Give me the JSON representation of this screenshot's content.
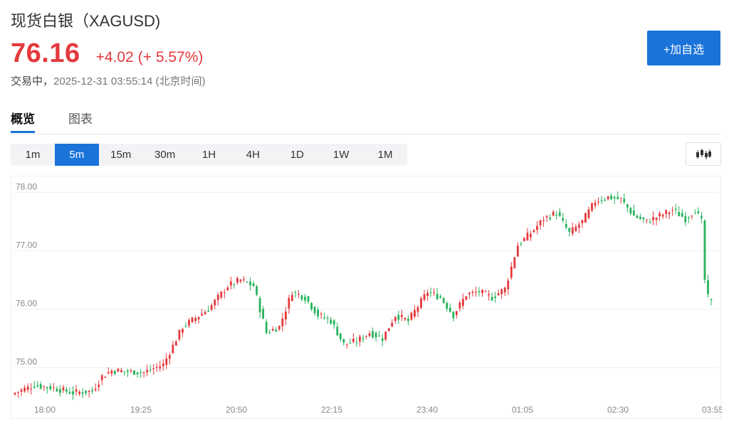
{
  "header": {
    "title": "现货白银（XAGUSD)",
    "price": "76.16",
    "change": "+4.02",
    "change_pct": "(+ 5.57%)",
    "status": "交易中，",
    "timestamp": "2025-12-31 03:55:14 (北京时间)",
    "watch_button": "+加自选"
  },
  "tabs": [
    {
      "label": "概览",
      "active": true
    },
    {
      "label": "图表",
      "active": false
    }
  ],
  "intervals": [
    {
      "label": "1m",
      "active": false
    },
    {
      "label": "5m",
      "active": true
    },
    {
      "label": "15m",
      "active": false
    },
    {
      "label": "30m",
      "active": false
    },
    {
      "label": "1H",
      "active": false
    },
    {
      "label": "4H",
      "active": false
    },
    {
      "label": "1D",
      "active": false
    },
    {
      "label": "1W",
      "active": false
    },
    {
      "label": "1M",
      "active": false
    }
  ],
  "icons": {
    "chart_type": "candlestick-icon"
  },
  "colors": {
    "up": "#e4393c",
    "down": "#26b35a",
    "accent": "#1a73d9"
  },
  "chart_data": {
    "type": "candlestick",
    "interval": "5m",
    "x_ticks": [
      "18:00",
      "19:25",
      "20:50",
      "22:15",
      "23:40",
      "01:05",
      "02:30",
      "03:55"
    ],
    "y_ticks": [
      "75.00",
      "76.00",
      "77.00",
      "78.00"
    ],
    "ylim": [
      74.4,
      78.2
    ],
    "grid": true,
    "anchors": [
      [
        0,
        74.57
      ],
      [
        6,
        74.7
      ],
      [
        12,
        74.65
      ],
      [
        18,
        74.57
      ],
      [
        24,
        74.6
      ],
      [
        27,
        74.85
      ],
      [
        30,
        74.95
      ],
      [
        40,
        74.92
      ],
      [
        46,
        75.05
      ],
      [
        52,
        75.7
      ],
      [
        56,
        75.85
      ],
      [
        60,
        76.0
      ],
      [
        66,
        76.4
      ],
      [
        70,
        76.5
      ],
      [
        74,
        76.4
      ],
      [
        78,
        75.6
      ],
      [
        82,
        75.7
      ],
      [
        86,
        76.3
      ],
      [
        90,
        76.2
      ],
      [
        94,
        75.9
      ],
      [
        98,
        75.8
      ],
      [
        102,
        75.4
      ],
      [
        106,
        75.45
      ],
      [
        110,
        75.6
      ],
      [
        114,
        75.5
      ],
      [
        118,
        75.9
      ],
      [
        122,
        75.8
      ],
      [
        128,
        76.3
      ],
      [
        132,
        76.2
      ],
      [
        136,
        75.9
      ],
      [
        140,
        76.25
      ],
      [
        144,
        76.3
      ],
      [
        148,
        76.2
      ],
      [
        152,
        76.35
      ],
      [
        156,
        77.1
      ],
      [
        160,
        77.3
      ],
      [
        164,
        77.55
      ],
      [
        168,
        77.65
      ],
      [
        172,
        77.3
      ],
      [
        176,
        77.5
      ],
      [
        180,
        77.85
      ],
      [
        184,
        77.92
      ],
      [
        188,
        77.88
      ],
      [
        192,
        77.6
      ],
      [
        196,
        77.5
      ],
      [
        200,
        77.6
      ],
      [
        204,
        77.7
      ],
      [
        208,
        77.55
      ],
      [
        211,
        77.7
      ],
      [
        213,
        77.5
      ],
      [
        214,
        76.5
      ],
      [
        215,
        76.2
      ],
      [
        216,
        76.16
      ]
    ]
  }
}
